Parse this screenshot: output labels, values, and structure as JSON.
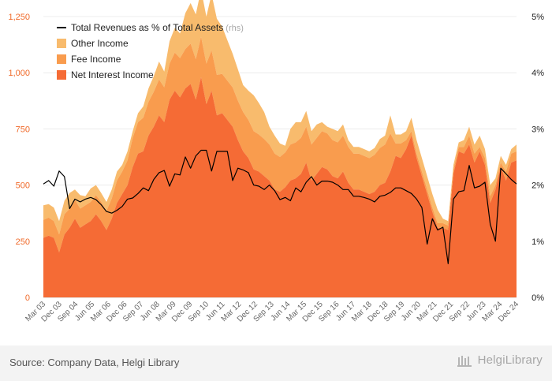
{
  "chart_data": {
    "type": "area",
    "title": "",
    "left_axis": {
      "ticks": [
        0,
        250,
        500,
        "750",
        "1,000",
        "1,250"
      ],
      "tick_labels": [
        "0",
        "250",
        "500",
        "750",
        "1,000",
        "1,250"
      ],
      "range": [
        0,
        1250
      ],
      "color": "#f06a2a"
    },
    "right_axis": {
      "tick_labels": [
        "0%",
        "1%",
        "2%",
        "3%",
        "4%",
        "5%"
      ],
      "range": [
        0,
        5
      ],
      "unit": "%"
    },
    "x_tick_labels": [
      "Mar 03",
      "Dec 03",
      "Sep 04",
      "Jun 05",
      "Mar 06",
      "Dec 06",
      "Sep 07",
      "Jun 08",
      "Mar 09",
      "Dec 09",
      "Sep 10",
      "Jun 11",
      "Mar 12",
      "Dec 12",
      "Sep 13",
      "Jun 14",
      "Mar 15",
      "Dec 15",
      "Sep 16",
      "Jun 17",
      "Mar 18",
      "Dec 18",
      "Sep 19",
      "Jun 20",
      "Mar 21",
      "Dec 21",
      "Sep 22",
      "Jun 23",
      "Mar 24",
      "Dec 24"
    ],
    "legend": [
      {
        "label": "Total Revenues as % of Total Assets",
        "suffix": " (rhs)",
        "color": "#000000",
        "kind": "line"
      },
      {
        "label": "Other Income",
        "color": "#f8bb6d",
        "kind": "area"
      },
      {
        "label": "Fee Income",
        "color": "#f99c4e",
        "kind": "area"
      },
      {
        "label": "Net Interest Income",
        "color": "#f56b35",
        "kind": "area"
      }
    ],
    "series": [
      {
        "name": "Net Interest Income",
        "values": [
          265,
          275,
          265,
          200,
          280,
          310,
          350,
          310,
          325,
          340,
          370,
          340,
          300,
          350,
          420,
          460,
          500,
          580,
          640,
          650,
          720,
          760,
          810,
          780,
          880,
          920,
          890,
          930,
          950,
          880,
          980,
          860,
          920,
          810,
          820,
          790,
          760,
          700,
          650,
          620,
          570,
          560,
          540,
          520,
          480,
          470,
          490,
          520,
          530,
          550,
          600,
          520,
          550,
          580,
          570,
          540,
          530,
          560,
          510,
          480,
          480,
          470,
          460,
          470,
          500,
          510,
          560,
          630,
          620,
          660,
          720,
          620,
          540,
          460,
          380,
          310,
          310,
          300,
          550,
          650,
          640,
          680,
          600,
          650,
          590,
          420,
          480,
          580,
          520,
          600,
          610
        ]
      },
      {
        "name": "Fee Income",
        "values": [
          80,
          80,
          75,
          80,
          90,
          85,
          85,
          85,
          85,
          85,
          85,
          85,
          85,
          90,
          100,
          100,
          110,
          130,
          140,
          150,
          150,
          155,
          160,
          155,
          160,
          170,
          175,
          175,
          180,
          180,
          180,
          180,
          180,
          180,
          175,
          175,
          175,
          175,
          175,
          170,
          170,
          165,
          165,
          160,
          160,
          155,
          155,
          160,
          160,
          160,
          160,
          160,
          160,
          160,
          160,
          160,
          160,
          160,
          160,
          160,
          160,
          160,
          160,
          165,
          165,
          170,
          170,
          55,
          65,
          40,
          20,
          20,
          20,
          20,
          20,
          20,
          20,
          20,
          20,
          20,
          30,
          40,
          40,
          20,
          30,
          30,
          20,
          20,
          40,
          40,
          40
        ]
      },
      {
        "name": "Other Income",
        "values": [
          65,
          60,
          60,
          60,
          60,
          70,
          45,
          60,
          40,
          60,
          45,
          40,
          40,
          40,
          40,
          30,
          40,
          30,
          40,
          50,
          60,
          70,
          80,
          70,
          100,
          110,
          110,
          160,
          180,
          200,
          210,
          210,
          250,
          250,
          210,
          180,
          150,
          140,
          120,
          130,
          160,
          140,
          120,
          80,
          80,
          60,
          30,
          70,
          90,
          70,
          70,
          60,
          60,
          40,
          30,
          50,
          50,
          50,
          30,
          30,
          30,
          30,
          30,
          30,
          40,
          40,
          80,
          40,
          40,
          40,
          60,
          60,
          60,
          60,
          60,
          60,
          20,
          20,
          20,
          20,
          30,
          40,
          40,
          50,
          40,
          50,
          30,
          30,
          30,
          20,
          30
        ]
      },
      {
        "name": "Total Revenues as % of Total Assets",
        "axis": "right",
        "values": [
          2.02,
          2.08,
          1.98,
          2.25,
          2.15,
          1.58,
          1.75,
          1.7,
          1.75,
          1.78,
          1.74,
          1.65,
          1.53,
          1.5,
          1.55,
          1.62,
          1.75,
          1.77,
          1.85,
          1.95,
          1.9,
          2.1,
          2.22,
          2.26,
          1.98,
          2.2,
          2.18,
          2.5,
          2.3,
          2.52,
          2.62,
          2.62,
          2.25,
          2.6,
          2.6,
          2.6,
          2.08,
          2.3,
          2.27,
          2.22,
          2.0,
          1.98,
          1.92,
          2.0,
          1.9,
          1.74,
          1.78,
          1.72,
          1.95,
          1.88,
          2.05,
          2.15,
          2.0,
          2.07,
          2.07,
          2.05,
          2.0,
          1.92,
          1.92,
          1.8,
          1.8,
          1.78,
          1.75,
          1.7,
          1.8,
          1.82,
          1.87,
          1.95,
          1.95,
          1.9,
          1.85,
          1.75,
          1.6,
          0.95,
          1.4,
          1.2,
          1.25,
          0.6,
          1.75,
          1.88,
          1.9,
          2.35,
          1.95,
          1.98,
          2.05,
          1.3,
          1.0,
          2.3,
          2.2,
          2.1,
          2.02
        ]
      }
    ]
  },
  "footer": {
    "source": "Source: Company Data, Helgi Library",
    "brand": "HelgiLibrary"
  }
}
